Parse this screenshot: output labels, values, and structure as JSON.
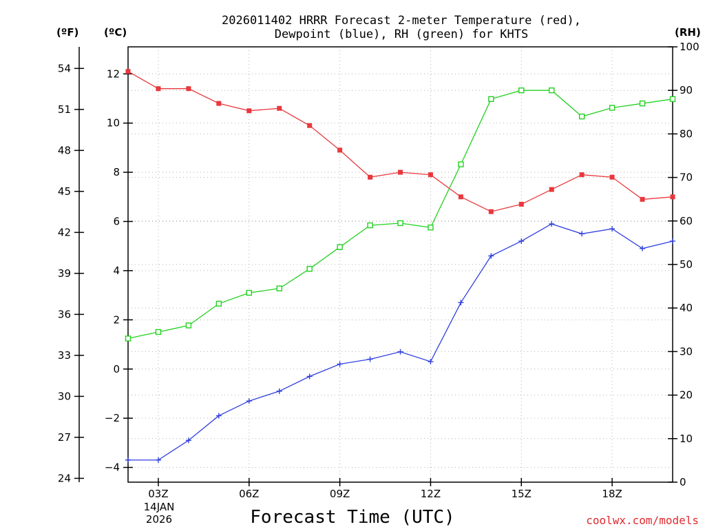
{
  "chart_data": {
    "type": "line",
    "title_line1": "2026011402 HRRR Forecast 2-meter Temperature (red),",
    "title_line2": "Dewpoint (blue), RH (green) for KHTS",
    "xlabel": "Forecast Time (UTC)",
    "credit": "coolwx.com/models",
    "units": {
      "fahrenheit": "(ºF)",
      "celsius": "(ºC)",
      "rh": "(RH)"
    },
    "x_hours": [
      2,
      3,
      4,
      5,
      6,
      7,
      8,
      9,
      10,
      11,
      12,
      13,
      14,
      15,
      16,
      17,
      18,
      19,
      20
    ],
    "xlim": [
      2,
      20
    ],
    "x_ticks": [
      {
        "hour": 3,
        "label": "03Z"
      },
      {
        "hour": 6,
        "label": "06Z"
      },
      {
        "hour": 9,
        "label": "09Z"
      },
      {
        "hour": 12,
        "label": "12Z"
      },
      {
        "hour": 15,
        "label": "15Z"
      },
      {
        "hour": 18,
        "label": "18Z"
      }
    ],
    "date_label_1": "14JAN",
    "date_label_2": "2026",
    "celsius_ylim": [
      -4.6,
      13.1
    ],
    "celsius_ticks": [
      -4,
      -2,
      0,
      2,
      4,
      6,
      8,
      10,
      12
    ],
    "celsius_tick_labels": [
      "−4",
      "−2",
      "0",
      "2",
      "4",
      "6",
      "8",
      "10",
      "12"
    ],
    "fahrenheit_ticks": [
      24,
      27,
      30,
      33,
      36,
      39,
      42,
      45,
      48,
      51,
      54
    ],
    "fahrenheit_tick_labels": [
      "24",
      "27",
      "30",
      "33",
      "36",
      "39",
      "42",
      "45",
      "48",
      "51",
      "54"
    ],
    "rh_ylim": [
      0,
      100
    ],
    "rh_ticks": [
      0,
      10,
      20,
      30,
      40,
      50,
      60,
      70,
      80,
      90,
      100
    ],
    "rh_tick_labels": [
      "0",
      "10",
      "20",
      "30",
      "40",
      "50",
      "60",
      "70",
      "80",
      "90",
      "100"
    ],
    "grid": true,
    "series": [
      {
        "name": "Temperature",
        "axis": "celsius",
        "color": "#e8383d",
        "marker": "filled-square",
        "values": [
          12.1,
          11.4,
          11.4,
          10.8,
          10.5,
          10.6,
          9.9,
          8.9,
          7.8,
          8.0,
          7.9,
          7.0,
          6.4,
          6.7,
          7.3,
          7.9,
          7.8,
          6.9,
          7.0
        ]
      },
      {
        "name": "Dewpoint",
        "axis": "celsius",
        "color": "#2f3fe0",
        "marker": "plus",
        "values": [
          -3.7,
          -3.7,
          -2.9,
          -1.9,
          -1.3,
          -0.9,
          -0.3,
          0.2,
          0.4,
          0.7,
          0.3,
          2.7,
          4.6,
          5.2,
          5.9,
          5.5,
          5.7,
          4.9,
          5.2
        ]
      },
      {
        "name": "RH",
        "axis": "rh",
        "color": "#22d11f",
        "marker": "open-square",
        "values": [
          33,
          34.5,
          36,
          41,
          43.5,
          44.5,
          49,
          54,
          59,
          59.5,
          58.5,
          73,
          88,
          90,
          90,
          84,
          86,
          87,
          88
        ]
      }
    ]
  }
}
